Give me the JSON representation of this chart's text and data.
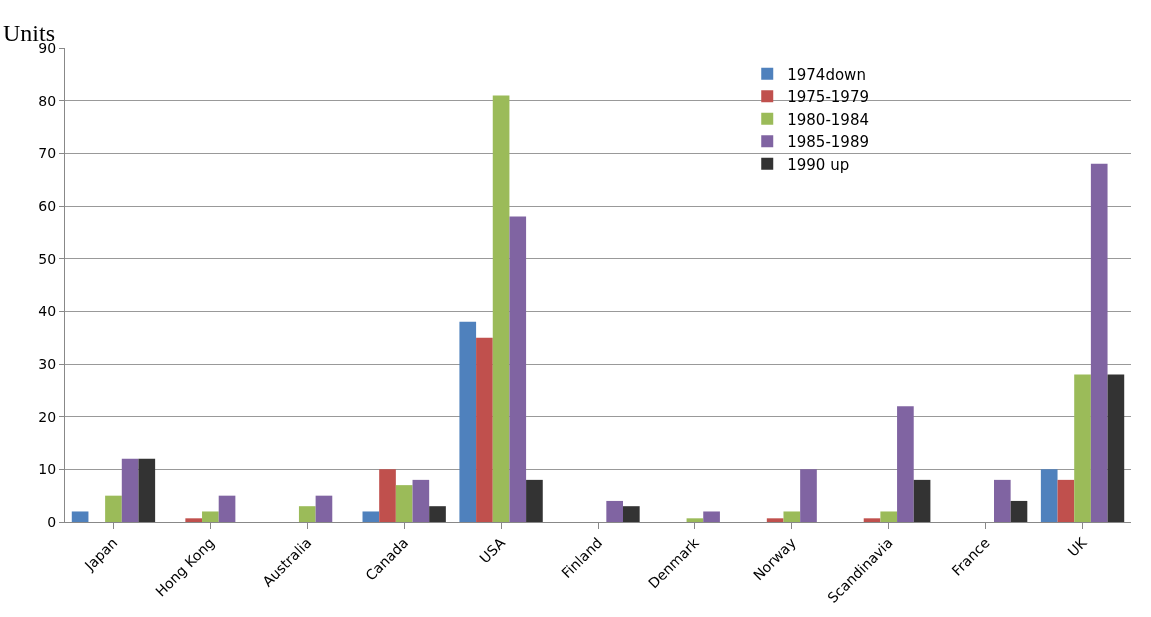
{
  "chart_data": {
    "type": "bar",
    "ylabel": "Units",
    "categories": [
      "Japan",
      "Hong Kong",
      "Australia",
      "Canada",
      "USA",
      "Finland",
      "Denmark",
      "Norway",
      "Scandinavia",
      "France",
      "UK"
    ],
    "series": [
      {
        "name": "1974down",
        "color": "#4f81bd",
        "values": [
          2,
          null,
          null,
          2,
          38,
          null,
          null,
          null,
          null,
          null,
          10
        ]
      },
      {
        "name": "1975-1979",
        "color": "#c0504d",
        "values": [
          null,
          0.7,
          null,
          10,
          35,
          null,
          null,
          0.7,
          0.7,
          null,
          8
        ]
      },
      {
        "name": "1980-1984",
        "color": "#9bbb59",
        "values": [
          5,
          2,
          3,
          7,
          81,
          null,
          0.7,
          2,
          2,
          null,
          28
        ]
      },
      {
        "name": "1985-1989",
        "color": "#8064a2",
        "values": [
          12,
          5,
          5,
          8,
          58,
          4,
          2,
          10,
          22,
          8,
          68
        ]
      },
      {
        "name": "1990 up",
        "color": "#333333",
        "values": [
          12,
          null,
          null,
          3,
          8,
          3,
          null,
          null,
          8,
          4,
          28
        ]
      }
    ],
    "ylim": [
      0,
      90
    ],
    "yticks": [
      0,
      10,
      20,
      30,
      40,
      50,
      60,
      70,
      80,
      90
    ],
    "grid": "y",
    "legend": "top right"
  }
}
